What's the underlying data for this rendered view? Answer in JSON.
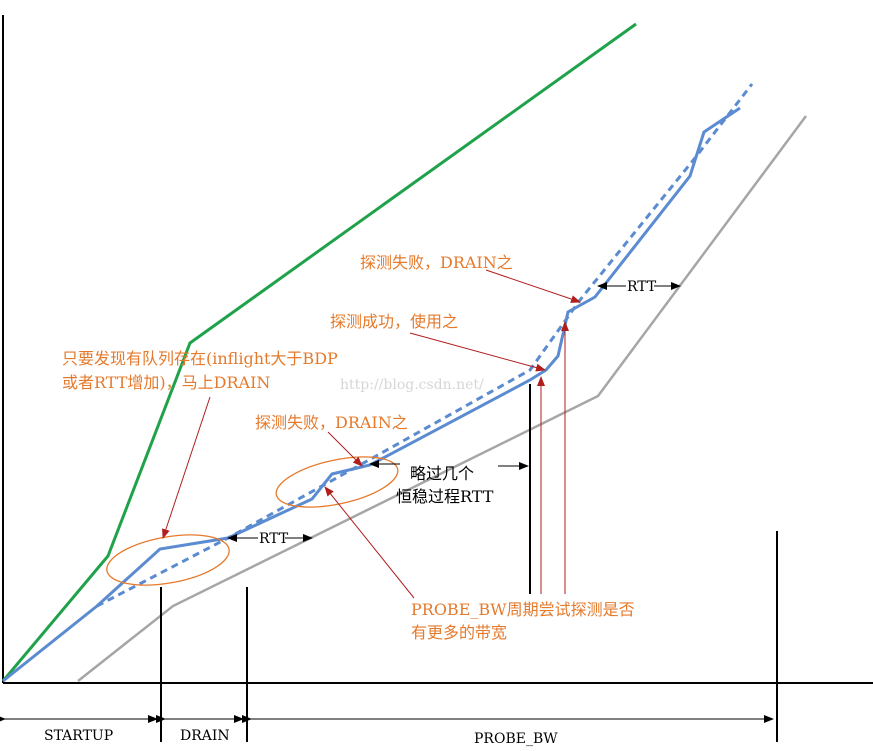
{
  "colors": {
    "green_line": "#1fa24a",
    "blue_line": "#5b8bd0",
    "gray_line": "#a6a6a6",
    "annotation_text": "#e57a2c",
    "arrow_red": "#b01e1e",
    "axis": "#000000"
  },
  "phases": {
    "startup": "STARTUP",
    "drain": "DRAIN",
    "probe_bw": "PROBE_BW"
  },
  "annotations": {
    "drain_note_line1": "只要发现有队列存在(inflight大于BDP",
    "drain_note_line2": "或者RTT增加)，马上DRAIN",
    "probe_fail_1": "探测失败，DRAIN之",
    "probe_success": "探测成功，使用之",
    "probe_fail_2": "探测失败，DRAIN之",
    "skip_line1": "略过几个",
    "skip_line2": "恒稳过程RTT",
    "probe_cycle_line1": "PROBE_BW周期尝试探测是否",
    "probe_cycle_line2": "有更多的带宽",
    "rtt_label_1": "RTT",
    "rtt_label_2": "RTT"
  },
  "watermark": "http://blog.csdn.net/"
}
